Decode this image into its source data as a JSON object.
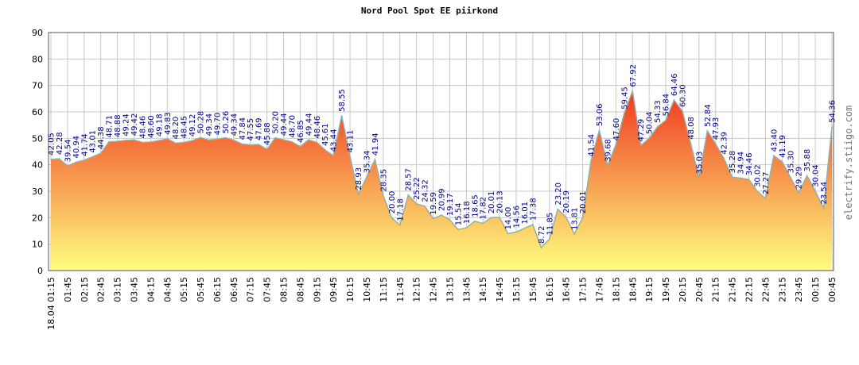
{
  "watermark": "electrify.stiigo.com",
  "chart_data": {
    "type": "area",
    "title": "Nord Pool Spot EE piirkond",
    "xlabel": "",
    "ylabel": "",
    "ylim": [
      0,
      90
    ],
    "yticks": [
      0,
      10,
      20,
      30,
      40,
      50,
      60,
      70,
      80,
      90
    ],
    "grid": true,
    "legend": "none",
    "colors": {
      "fill_top": "#f03820",
      "fill_bottom": "#ffff80",
      "line": "#8fb0b0",
      "grid": "#c8c8c8",
      "label": "#000080"
    },
    "x_tick_labels": [
      "18.04 01:15",
      "01:45",
      "02:15",
      "02:45",
      "03:15",
      "03:45",
      "04:15",
      "04:45",
      "05:15",
      "05:45",
      "06:15",
      "06:45",
      "07:15",
      "07:45",
      "08:15",
      "08:45",
      "09:15",
      "09:45",
      "10:15",
      "10:45",
      "11:15",
      "11:45",
      "12:15",
      "12:45",
      "13:15",
      "13:45",
      "14:15",
      "14:45",
      "15:15",
      "15:45",
      "16:15",
      "16:45",
      "17:15",
      "17:45",
      "18:15",
      "18:45",
      "19:15",
      "19:45",
      "20:15",
      "20:45",
      "21:15",
      "21:45",
      "22:15",
      "22:45",
      "23:15",
      "23:45",
      "00:15",
      "00:45"
    ],
    "value_labels": [
      "42.05",
      "42.28",
      "39.54",
      "40.94",
      "41.74",
      "43.01",
      "44.38",
      "48.71",
      "48.88",
      "49.24",
      "49.42",
      "48.46",
      "48.60",
      "49.18",
      "49.83",
      "48.20",
      "48.45",
      "49.12",
      "50.28",
      "49.34",
      "49.70",
      "50.26",
      "49.34",
      "47.84",
      "47.55",
      "47.69",
      "45.88",
      "50.20",
      "49.44",
      "48.70",
      "46.85",
      "49.44",
      "48.46",
      "45.61",
      "43.44",
      "58.55",
      "43.11",
      "28.93",
      "35.34",
      "41.94",
      "28.35",
      "20.00",
      "17.18",
      "28.57",
      "25.22",
      "24.32",
      "19.59",
      "20.99",
      "19.17",
      "15.54",
      "16.18",
      "18.65",
      "17.82",
      "20.01",
      "20.13",
      "14.00",
      "14.56",
      "16.01",
      "17.38",
      "8.72",
      "11.85",
      "23.20",
      "20.19",
      "13.81",
      "20.01",
      "41.54",
      "53.06",
      "39.68",
      "47.60",
      "59.45",
      "67.92",
      "47.29",
      "50.04",
      "54.33",
      "56.84",
      "64.46",
      "60.30",
      "48.08",
      "35.03",
      "52.84",
      "47.93",
      "42.39",
      "35.28",
      "34.94",
      "34.46",
      "30.02",
      "27.27",
      "43.40",
      "41.19",
      "35.30",
      "29.29",
      "35.88",
      "30.04",
      "23.54",
      "54.36"
    ],
    "values": [
      42.05,
      42.28,
      39.54,
      40.94,
      41.74,
      43.01,
      44.38,
      48.71,
      48.88,
      49.24,
      49.42,
      48.46,
      48.6,
      49.18,
      49.83,
      48.2,
      48.45,
      49.12,
      50.28,
      49.34,
      49.7,
      50.26,
      49.34,
      47.84,
      47.55,
      47.69,
      45.88,
      50.2,
      49.44,
      48.7,
      46.85,
      49.44,
      48.46,
      45.61,
      43.44,
      58.55,
      43.11,
      28.93,
      35.34,
      41.94,
      28.35,
      20.0,
      17.18,
      28.57,
      25.22,
      24.32,
      19.59,
      20.99,
      19.17,
      15.54,
      16.18,
      18.65,
      17.82,
      20.01,
      20.13,
      14.0,
      14.56,
      16.01,
      17.38,
      8.72,
      11.85,
      23.2,
      20.19,
      13.81,
      20.01,
      41.54,
      53.06,
      39.68,
      47.6,
      59.45,
      67.92,
      47.29,
      50.04,
      54.33,
      56.84,
      64.46,
      60.3,
      48.08,
      35.03,
      52.84,
      47.93,
      42.39,
      35.28,
      34.94,
      34.46,
      30.02,
      27.27,
      43.4,
      41.19,
      35.3,
      29.29,
      35.88,
      30.04,
      23.54,
      54.36
    ]
  }
}
